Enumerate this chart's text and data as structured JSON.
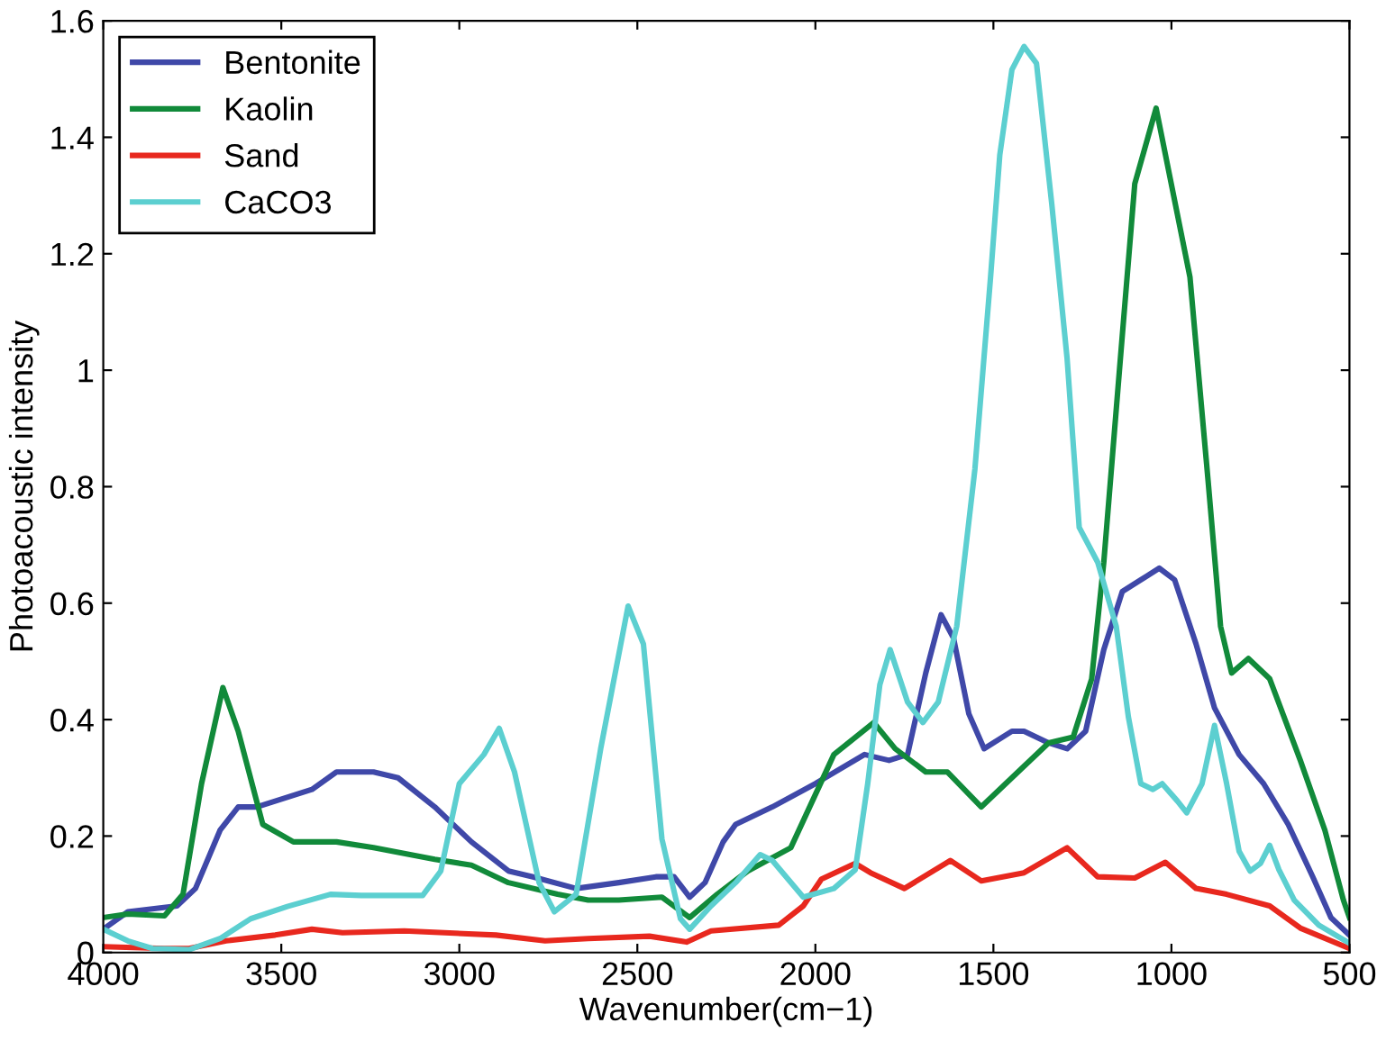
{
  "chart_data": {
    "type": "line",
    "xlabel": "Wavenumber(cm−1)",
    "ylabel": "Photoacoustic intensity",
    "xlim": [
      4000,
      500
    ],
    "ylim": [
      0,
      1.6
    ],
    "xticks": [
      4000,
      3500,
      3000,
      2500,
      2000,
      1500,
      1000,
      500
    ],
    "yticks": [
      0,
      0.2,
      0.4,
      0.6,
      0.8,
      1,
      1.2,
      1.4,
      1.6
    ],
    "grid": false,
    "legend": "top left",
    "marker": "none",
    "line_style": "solid",
    "series": [
      {
        "name": "Bentonite",
        "color": "#3f48a8",
        "x": [
          4000,
          3931,
          3793,
          3741,
          3672,
          3621,
          3569,
          3414,
          3345,
          3241,
          3172,
          3069,
          2966,
          2862,
          2793,
          2672,
          2552,
          2448,
          2397,
          2353,
          2310,
          2259,
          2224,
          2121,
          2000,
          1862,
          1793,
          1741,
          1690,
          1647,
          1612,
          1569,
          1526,
          1448,
          1414,
          1345,
          1293,
          1241,
          1190,
          1138,
          1086,
          1034,
          991,
          931,
          879,
          810,
          741,
          672,
          603,
          552,
          500
        ],
        "values": [
          0.04,
          0.07,
          0.08,
          0.11,
          0.21,
          0.25,
          0.25,
          0.28,
          0.31,
          0.31,
          0.3,
          0.25,
          0.19,
          0.14,
          0.13,
          0.11,
          0.12,
          0.13,
          0.13,
          0.095,
          0.12,
          0.19,
          0.22,
          0.25,
          0.29,
          0.34,
          0.33,
          0.34,
          0.48,
          0.58,
          0.54,
          0.41,
          0.35,
          0.38,
          0.38,
          0.36,
          0.35,
          0.38,
          0.52,
          0.62,
          0.64,
          0.66,
          0.64,
          0.53,
          0.42,
          0.34,
          0.29,
          0.22,
          0.13,
          0.06,
          0.03
        ]
      },
      {
        "name": "Kaolin",
        "color": "#118a3a",
        "x": [
          4000,
          3931,
          3828,
          3776,
          3724,
          3664,
          3621,
          3552,
          3466,
          3345,
          3241,
          3069,
          2966,
          2862,
          2724,
          2638,
          2552,
          2431,
          2353,
          2276,
          2190,
          2069,
          1948,
          1836,
          1776,
          1690,
          1629,
          1534,
          1431,
          1345,
          1276,
          1224,
          1190,
          1146,
          1103,
          1043,
          948,
          897,
          862,
          831,
          784,
          724,
          638,
          569,
          517,
          500
        ],
        "values": [
          0.06,
          0.066,
          0.063,
          0.1,
          0.29,
          0.455,
          0.38,
          0.22,
          0.19,
          0.19,
          0.18,
          0.16,
          0.15,
          0.12,
          0.1,
          0.09,
          0.09,
          0.095,
          0.06,
          0.1,
          0.14,
          0.18,
          0.34,
          0.395,
          0.35,
          0.31,
          0.31,
          0.25,
          0.31,
          0.36,
          0.37,
          0.47,
          0.67,
          1.0,
          1.32,
          1.45,
          1.16,
          0.81,
          0.56,
          0.48,
          0.505,
          0.47,
          0.33,
          0.21,
          0.09,
          0.06
        ]
      },
      {
        "name": "Sand",
        "color": "#e8281e",
        "x": [
          4000,
          3828,
          3759,
          3655,
          3517,
          3414,
          3328,
          3155,
          2897,
          2759,
          2638,
          2466,
          2362,
          2293,
          2103,
          2034,
          1983,
          1888,
          1845,
          1750,
          1621,
          1534,
          1414,
          1293,
          1207,
          1103,
          1017,
          931,
          845,
          724,
          638,
          500
        ],
        "values": [
          0.01,
          0.007,
          0.007,
          0.02,
          0.03,
          0.04,
          0.034,
          0.037,
          0.03,
          0.02,
          0.024,
          0.028,
          0.018,
          0.037,
          0.047,
          0.08,
          0.126,
          0.153,
          0.137,
          0.11,
          0.158,
          0.123,
          0.137,
          0.18,
          0.13,
          0.128,
          0.155,
          0.11,
          0.1,
          0.08,
          0.042,
          0.007
        ]
      },
      {
        "name": "CaCO3",
        "color": "#5ccfd0",
        "x": [
          4000,
          3931,
          3862,
          3759,
          3672,
          3586,
          3483,
          3362,
          3276,
          3103,
          3052,
          3000,
          2931,
          2888,
          2845,
          2776,
          2733,
          2672,
          2603,
          2526,
          2483,
          2431,
          2379,
          2353,
          2293,
          2224,
          2155,
          2121,
          2034,
          1948,
          1888,
          1853,
          1819,
          1790,
          1741,
          1698,
          1655,
          1603,
          1552,
          1508,
          1482,
          1448,
          1414,
          1379,
          1336,
          1293,
          1259,
          1207,
          1155,
          1121,
          1086,
          1052,
          1026,
          983,
          957,
          914,
          879,
          845,
          810,
          779,
          750,
          724,
          698,
          655,
          586,
          500
        ],
        "values": [
          0.04,
          0.02,
          0.007,
          0.005,
          0.024,
          0.058,
          0.079,
          0.1,
          0.098,
          0.098,
          0.14,
          0.29,
          0.34,
          0.385,
          0.31,
          0.12,
          0.07,
          0.1,
          0.35,
          0.595,
          0.53,
          0.195,
          0.058,
          0.04,
          0.08,
          0.12,
          0.168,
          0.158,
          0.095,
          0.11,
          0.142,
          0.29,
          0.46,
          0.52,
          0.43,
          0.395,
          0.43,
          0.56,
          0.83,
          1.16,
          1.37,
          1.516,
          1.556,
          1.527,
          1.285,
          1.02,
          0.73,
          0.67,
          0.56,
          0.405,
          0.29,
          0.28,
          0.29,
          0.26,
          0.24,
          0.29,
          0.39,
          0.29,
          0.174,
          0.14,
          0.153,
          0.184,
          0.142,
          0.09,
          0.047,
          0.016
        ]
      }
    ]
  }
}
